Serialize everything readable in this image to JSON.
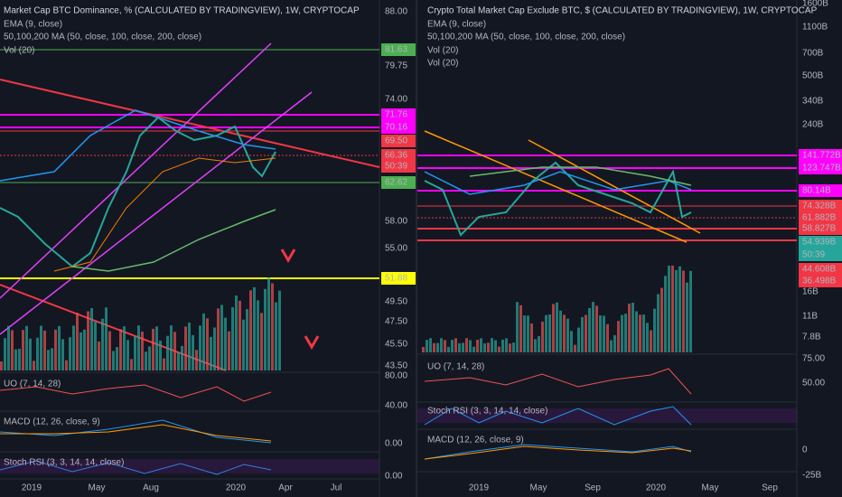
{
  "left_panel": {
    "title": "Market Cap BTC Dominance, % (CALCULATED BY TRADINGVIEW), 1W, CRYPTOCAP",
    "indicators": [
      "EMA (9, close)",
      "50,100,200 MA (50, close, 100, close, 200, close)",
      "Vol (20)"
    ],
    "price_labels": [
      "88.00",
      "81.63",
      "79.75",
      "74.00",
      "71.76",
      "70.16",
      "69.50",
      "66.36",
      "50:39",
      "62.62",
      "58.00",
      "55.00",
      "51.88",
      "49.50",
      "47.50",
      "45.50",
      "43.50",
      "80.00",
      "40.00",
      "0.00",
      "0.00"
    ],
    "uo_title": "UO (7, 14, 28)",
    "macd_title": "MACD (12, 26, close, 9)",
    "stoch_title": "Stoch RSI (3, 3, 14, 14, close)",
    "x_labels": [
      "2019",
      "May",
      "Aug",
      "2020",
      "Apr",
      "Jul"
    ]
  },
  "right_panel": {
    "title": "Crypto Total Market Cap Exclude BTC, $ (CALCULATED BY TRADINGVIEW), 1W, CRYPTOCAP",
    "indicators": [
      "EMA (9, close)",
      "50,100,200 MA (50, close, 100, close, 200, close)",
      "Vol (20)",
      "Vol (20)"
    ],
    "price_labels": [
      "1600B",
      "1100B",
      "700B",
      "500B",
      "340B",
      "240B",
      "141.772B",
      "123.747B",
      "80.14B",
      "74.328B",
      "61.882B",
      "58.827B",
      "54.939B",
      "50:39",
      "44.608B",
      "36.498B",
      "16B",
      "11B",
      "7.8B",
      "75.00",
      "50.00",
      "0",
      "-25B"
    ],
    "uo_title": "UO (7, 14, 28)",
    "stoch_title": "Stoch RSI (3, 3, 14, 14, close)",
    "macd_title": "MACD (12, 26, close, 9)",
    "x_labels": [
      "2019",
      "May",
      "Sep",
      "2020",
      "May",
      "Sep"
    ]
  }
}
